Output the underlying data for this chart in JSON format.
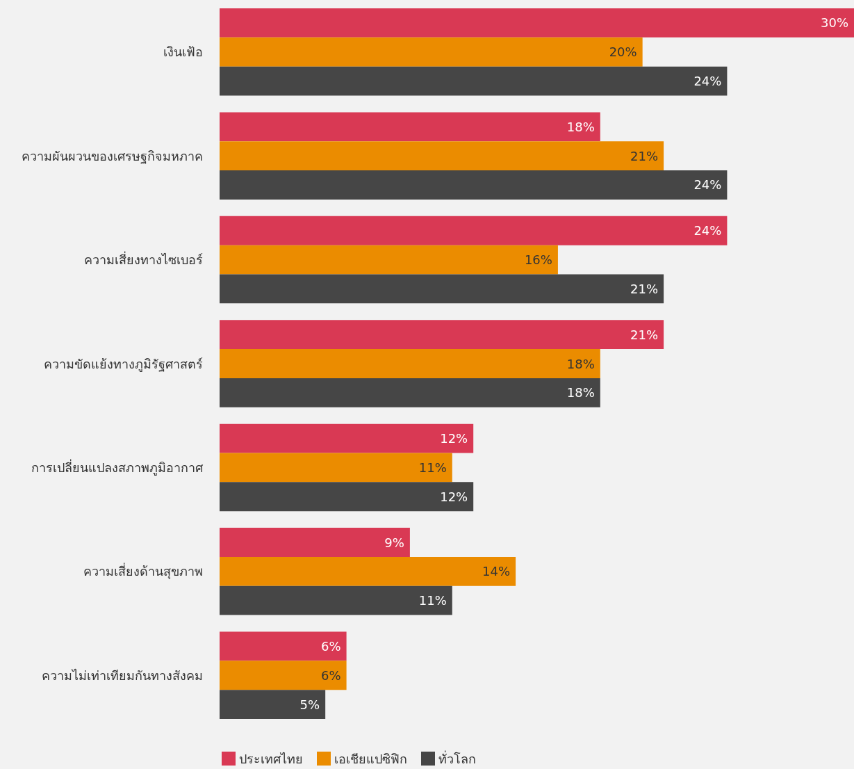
{
  "chart_data": {
    "type": "bar",
    "orientation": "horizontal",
    "categories": [
      "เงินเฟ้อ",
      "ความผันผวนของเศรษฐกิจมหภาค",
      "ความเสี่ยงทางไซเบอร์",
      "ความขัดแย้งทางภูมิรัฐศาสตร์",
      "การเปลี่ยนแปลงสภาพภูมิอากาศ",
      "ความเสี่ยงด้านสุขภาพ",
      "ความไม่เท่าเทียมกันทางสังคม"
    ],
    "series": [
      {
        "name": "ประเทศไทย",
        "color": "#d93954",
        "values": [
          30,
          18,
          24,
          21,
          12,
          9,
          6
        ],
        "value_labels": [
          "30%",
          "18%",
          "24%",
          "21%",
          "12%",
          "9%",
          "6%"
        ]
      },
      {
        "name": "เอเชียแปซิฟิก",
        "color": "#eb8c00",
        "values": [
          20,
          21,
          16,
          18,
          11,
          14,
          6
        ],
        "value_labels": [
          "20%",
          "21%",
          "16%",
          "18%",
          "11%",
          "14%",
          "6%"
        ]
      },
      {
        "name": "ทั่วโลก",
        "color": "#464646",
        "values": [
          24,
          24,
          21,
          18,
          12,
          11,
          5
        ],
        "value_labels": [
          "24%",
          "24%",
          "21%",
          "18%",
          "12%",
          "11%",
          "5%"
        ]
      }
    ],
    "tick_labels": "y",
    "grid": false,
    "legend": "bottom left"
  }
}
